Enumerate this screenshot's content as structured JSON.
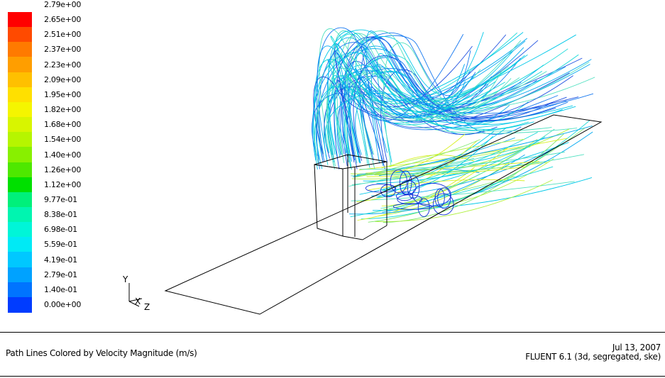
{
  "legend": {
    "ticks": [
      {
        "label": "2.79e+00",
        "color": "#ff0000"
      },
      {
        "label": "2.65e+00",
        "color": "#ff4a00"
      },
      {
        "label": "2.51e+00",
        "color": "#ff7a00"
      },
      {
        "label": "2.37e+00",
        "color": "#ff9e00"
      },
      {
        "label": "2.23e+00",
        "color": "#ffc000"
      },
      {
        "label": "2.09e+00",
        "color": "#ffe000"
      },
      {
        "label": "1.95e+00",
        "color": "#f5f500"
      },
      {
        "label": "1.82e+00",
        "color": "#d8f500"
      },
      {
        "label": "1.68e+00",
        "color": "#b6f500"
      },
      {
        "label": "1.54e+00",
        "color": "#88f000"
      },
      {
        "label": "1.40e+00",
        "color": "#4ee800"
      },
      {
        "label": "1.26e+00",
        "color": "#00e000"
      },
      {
        "label": "1.12e+00",
        "color": "#00f07a"
      },
      {
        "label": "9.77e-01",
        "color": "#00f5b0"
      },
      {
        "label": "8.38e-01",
        "color": "#00f5d8"
      },
      {
        "label": "6.98e-01",
        "color": "#00eaf5"
      },
      {
        "label": "5.59e-01",
        "color": "#00c8ff"
      },
      {
        "label": "4.19e-01",
        "color": "#00a2ff"
      },
      {
        "label": "2.79e-01",
        "color": "#0074ff"
      },
      {
        "label": "1.40e-01",
        "color": "#003cff"
      },
      {
        "label": "0.00e+00",
        "color": "#0000ff"
      }
    ]
  },
  "axes_triad": {
    "y": "Y",
    "x": "X",
    "z": "Z"
  },
  "footer": {
    "caption": "Path Lines Colored by Velocity Magnitude (m/s)",
    "date": "Jul 13, 2007",
    "solver": "FLUENT 6.1 (3d, segregated, ske)"
  }
}
